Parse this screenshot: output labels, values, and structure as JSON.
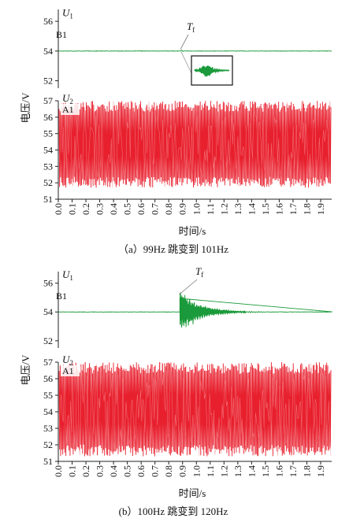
{
  "chart_data": [
    {
      "type": "line",
      "panel": "a",
      "caption": "（a）99Hz 跳变到 101Hz",
      "ylabel": "电压/V",
      "xlabel": "时间/s",
      "x_ticks": [
        "0.0",
        "0.1",
        "0.2",
        "0.3",
        "0.4",
        "0.5",
        "0.6",
        "0.7",
        "0.8",
        "0.9",
        "1.0",
        "1.1",
        "1.2",
        "1.3",
        "1.4",
        "1.5",
        "1.6",
        "1.7",
        "1.8",
        "1.9"
      ],
      "xlim": [
        0,
        1.98
      ],
      "top": {
        "signal": "U",
        "signal_sub": "1",
        "channel": "B1",
        "color": "#1a9a3a",
        "y_ticks": [
          "56",
          "54",
          "52"
        ],
        "ylim": [
          51.5,
          56.8
        ],
        "baseline": 54.0,
        "event": "T",
        "event_sub": "f",
        "event_time": 0.89,
        "transient_peak": 0.12,
        "transient_decay_s": 0.01,
        "zoom_inset": true
      },
      "bottom": {
        "signal": "U",
        "signal_sub": "2",
        "channel": "A1",
        "color": "#e8202e",
        "y_ticks": [
          "57",
          "56",
          "55",
          "54",
          "53",
          "52",
          "51"
        ],
        "ylim": [
          51,
          57
        ],
        "oscillation_min": 51.7,
        "oscillation_max": 57.0
      }
    },
    {
      "type": "line",
      "panel": "b",
      "caption": "(b）100Hz 跳变到 120Hz",
      "ylabel": "电压/V",
      "xlabel": "时间/s",
      "x_ticks": [
        "0.0",
        "0.1",
        "0.2",
        "0.3",
        "0.4",
        "0.5",
        "0.6",
        "0.7",
        "0.8",
        "0.9",
        "1.0",
        "1.1",
        "1.2",
        "1.3",
        "1.4",
        "1.5",
        "1.6",
        "1.7",
        "1.8",
        "1.9"
      ],
      "xlim": [
        0,
        1.98
      ],
      "top": {
        "signal": "U",
        "signal_sub": "1",
        "channel": "B1",
        "color": "#1a9a3a",
        "y_ticks": [
          "56",
          "54",
          "52"
        ],
        "ylim": [
          51.5,
          56.8
        ],
        "baseline": 54.0,
        "event": "T",
        "event_sub": "f",
        "event_time": 0.88,
        "transient_peak": 1.4,
        "transient_decay_s": 0.14,
        "zoom_inset": false
      },
      "bottom": {
        "signal": "U",
        "signal_sub": "2",
        "channel": "A1",
        "color": "#e8202e",
        "y_ticks": [
          "57",
          "56",
          "55",
          "54",
          "53",
          "52",
          "51"
        ],
        "ylim": [
          51,
          57
        ],
        "oscillation_min": 51.3,
        "oscillation_max": 57.0
      }
    }
  ]
}
